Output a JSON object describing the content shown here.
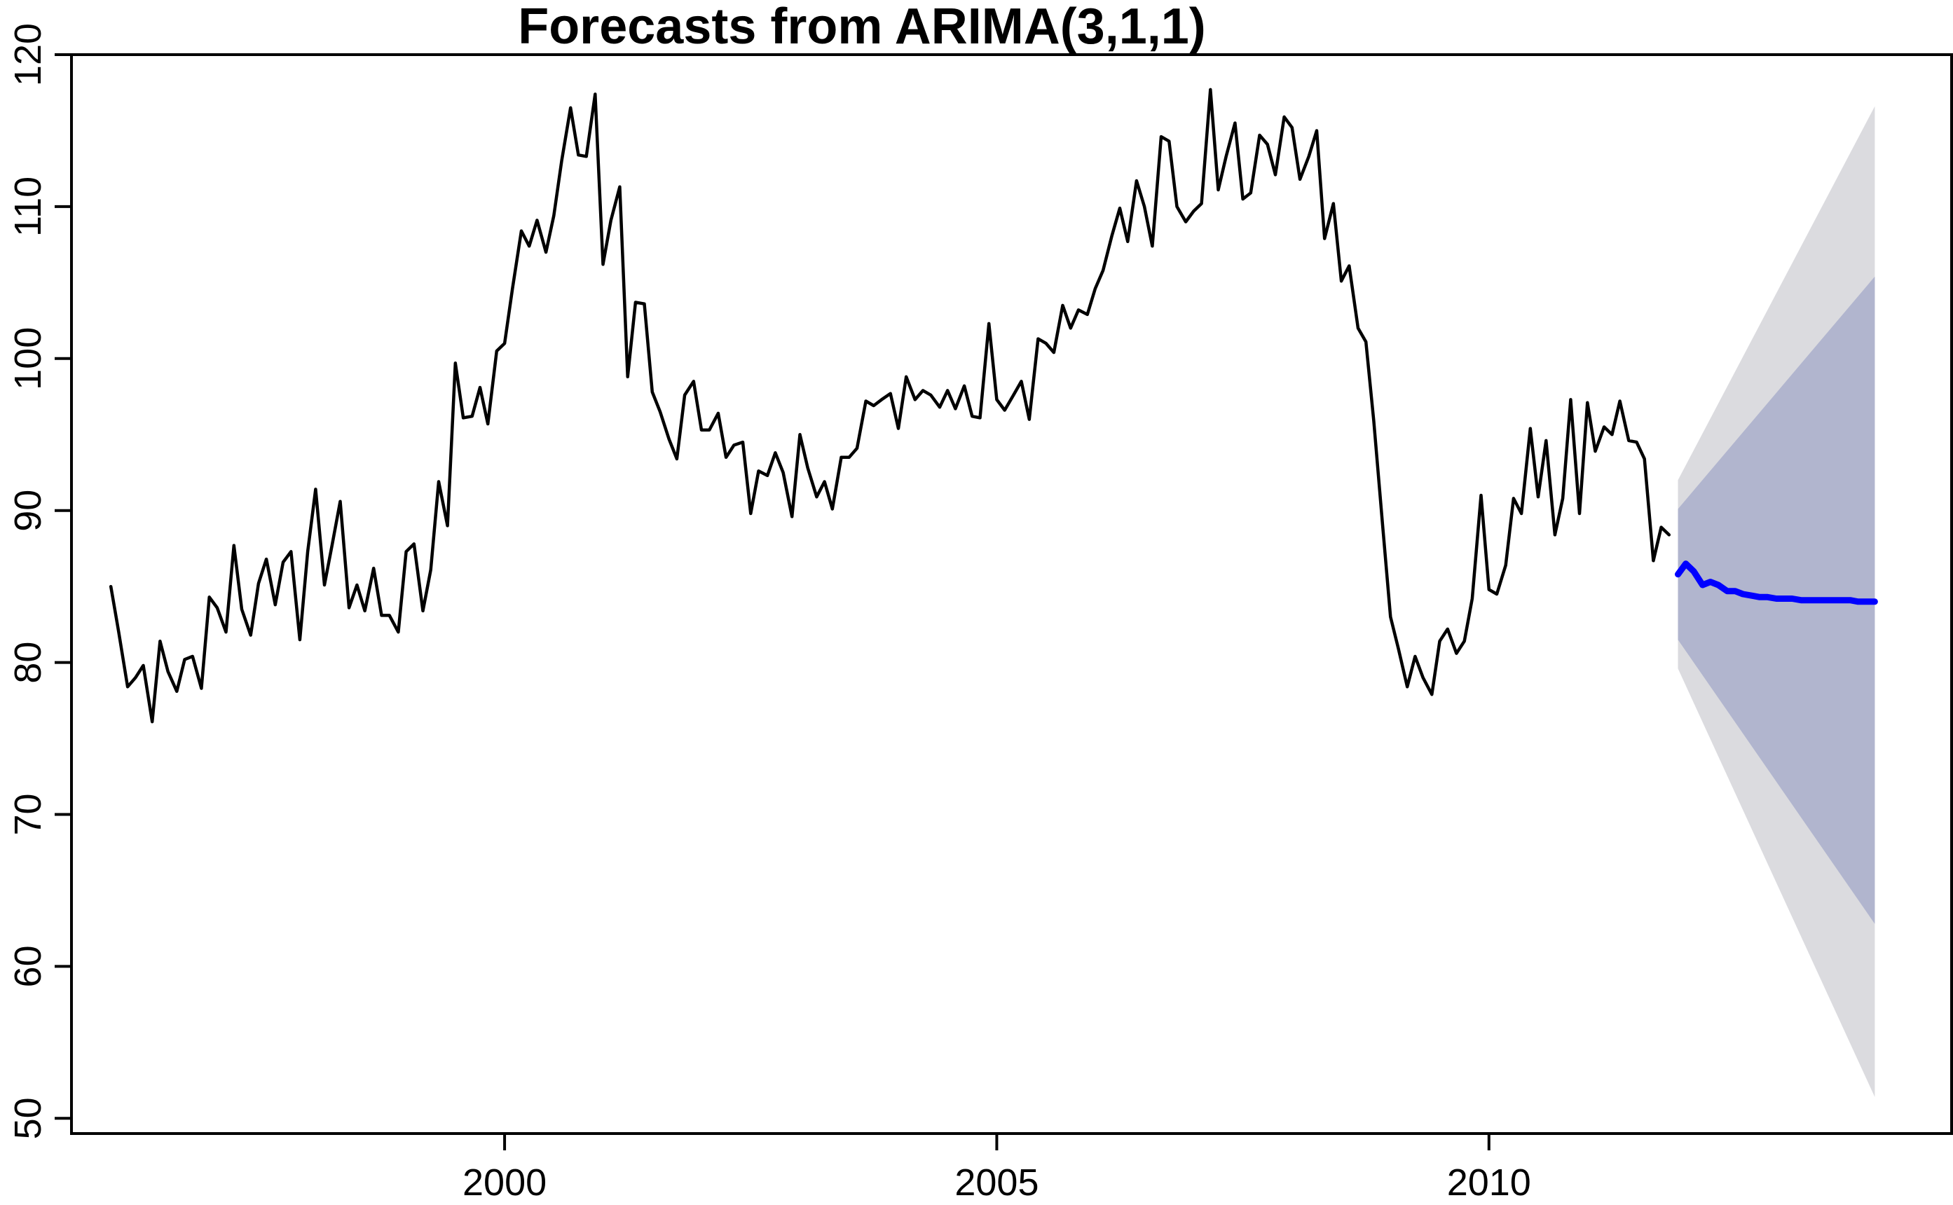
{
  "chart_data": {
    "type": "line",
    "title": "Forecasts from ARIMA(3,1,1)",
    "xlabel": "",
    "ylabel": "",
    "xlim": [
      1995.6,
      2014.7
    ],
    "ylim": [
      49,
      120
    ],
    "x_ticks": [
      2000,
      2005,
      2010
    ],
    "y_ticks": [
      50,
      60,
      70,
      80,
      90,
      100,
      110,
      120
    ],
    "grid": false,
    "legend": "none",
    "colors": {
      "observed": "#000000",
      "forecast": "#0000ff",
      "band80": "#b1b5ce",
      "band95": "#dbdbdf"
    },
    "series": [
      {
        "role": "observed",
        "x": [
          1996.0,
          1996.08,
          1996.17,
          1996.25,
          1996.33,
          1996.42,
          1996.5,
          1996.58,
          1996.67,
          1996.75,
          1996.83,
          1996.92,
          1997.0,
          1997.08,
          1997.17,
          1997.25,
          1997.33,
          1997.42,
          1997.5,
          1997.58,
          1997.67,
          1997.75,
          1997.83,
          1997.92,
          1998.0,
          1998.08,
          1998.17,
          1998.25,
          1998.33,
          1998.42,
          1998.5,
          1998.58,
          1998.67,
          1998.75,
          1998.83,
          1998.92,
          1999.0,
          1999.08,
          1999.17,
          1999.25,
          1999.33,
          1999.42,
          1999.5,
          1999.58,
          1999.67,
          1999.75,
          1999.83,
          1999.92,
          2000.0,
          2000.08,
          2000.17,
          2000.25,
          2000.33,
          2000.42,
          2000.5,
          2000.58,
          2000.67,
          2000.75,
          2000.83,
          2000.92,
          2001.0,
          2001.08,
          2001.17,
          2001.25,
          2001.33,
          2001.42,
          2001.5,
          2001.58,
          2001.67,
          2001.75,
          2001.83,
          2001.92,
          2002.0,
          2002.08,
          2002.17,
          2002.25,
          2002.33,
          2002.42,
          2002.5,
          2002.58,
          2002.67,
          2002.75,
          2002.83,
          2002.92,
          2003.0,
          2003.08,
          2003.17,
          2003.25,
          2003.33,
          2003.42,
          2003.5,
          2003.58,
          2003.67,
          2003.75,
          2003.83,
          2003.92,
          2004.0,
          2004.08,
          2004.17,
          2004.25,
          2004.33,
          2004.42,
          2004.5,
          2004.58,
          2004.67,
          2004.75,
          2004.83,
          2004.92,
          2005.0,
          2005.08,
          2005.17,
          2005.25,
          2005.33,
          2005.42,
          2005.5,
          2005.58,
          2005.67,
          2005.75,
          2005.83,
          2005.92,
          2006.0,
          2006.08,
          2006.17,
          2006.25,
          2006.33,
          2006.42,
          2006.5,
          2006.58,
          2006.67,
          2006.75,
          2006.83,
          2006.92,
          2007.0,
          2007.08,
          2007.17,
          2007.25,
          2007.33,
          2007.42,
          2007.5,
          2007.58,
          2007.67,
          2007.75,
          2007.83,
          2007.92,
          2008.0,
          2008.08,
          2008.17,
          2008.25,
          2008.33,
          2008.42,
          2008.5,
          2008.58,
          2008.67,
          2008.75,
          2008.83,
          2008.92,
          2009.0,
          2009.08,
          2009.17,
          2009.25,
          2009.33,
          2009.42,
          2009.5,
          2009.58,
          2009.67,
          2009.75,
          2009.83,
          2009.92,
          2010.0,
          2010.08,
          2010.17,
          2010.25,
          2010.33,
          2010.42,
          2010.5,
          2010.58,
          2010.67,
          2010.75,
          2010.83,
          2010.92,
          2011.0,
          2011.08,
          2011.17,
          2011.25,
          2011.33,
          2011.42,
          2011.5,
          2011.58,
          2011.67,
          2011.75,
          2011.83
        ],
        "values": [
          85.0,
          82.0,
          78.4,
          79.0,
          79.8,
          76.1,
          81.4,
          79.4,
          78.1,
          80.2,
          80.4,
          78.3,
          84.3,
          83.6,
          82.0,
          87.7,
          83.5,
          81.8,
          85.2,
          86.8,
          83.8,
          86.6,
          87.3,
          81.5,
          87.3,
          91.4,
          85.1,
          87.8,
          90.6,
          83.6,
          85.1,
          83.4,
          86.2,
          83.1,
          83.1,
          82.0,
          87.3,
          87.8,
          83.4,
          86.1,
          91.9,
          89.0,
          99.7,
          96.1,
          96.2,
          98.1,
          95.7,
          100.5,
          101.0,
          104.6,
          108.4,
          107.4,
          109.1,
          107.0,
          109.4,
          113.0,
          116.5,
          113.4,
          113.3,
          117.4,
          106.2,
          109.1,
          111.3,
          98.8,
          103.7,
          103.6,
          97.8,
          96.5,
          94.7,
          93.4,
          97.6,
          98.5,
          95.3,
          95.3,
          96.4,
          93.5,
          94.3,
          94.5,
          89.8,
          92.6,
          92.3,
          93.8,
          92.5,
          89.6,
          95.0,
          92.8,
          90.9,
          91.9,
          90.1,
          93.5,
          93.5,
          94.1,
          97.2,
          96.9,
          97.3,
          97.7,
          95.4,
          98.8,
          97.3,
          97.9,
          97.6,
          96.8,
          97.9,
          96.7,
          98.2,
          96.2,
          96.1,
          102.3,
          97.3,
          96.6,
          97.6,
          98.5,
          96.0,
          101.3,
          101.0,
          100.4,
          103.5,
          102.0,
          103.2,
          102.9,
          104.6,
          105.8,
          108.1,
          109.9,
          107.7,
          111.7,
          110.0,
          107.4,
          114.6,
          114.3,
          110.0,
          109.0,
          109.7,
          110.2,
          117.7,
          111.1,
          113.3,
          115.5,
          110.5,
          110.9,
          114.7,
          114.1,
          112.1,
          115.9,
          115.2,
          111.8,
          113.3,
          115.0,
          107.9,
          110.2,
          105.1,
          106.1,
          102.0,
          101.1,
          95.9,
          89.0,
          83.0,
          80.9,
          78.4,
          80.4,
          79.0,
          77.9,
          81.4,
          82.2,
          80.6,
          81.4,
          84.2,
          91.0,
          84.8,
          84.5,
          86.4,
          90.8,
          89.8,
          95.4,
          90.9,
          94.6,
          88.4,
          90.8,
          97.3,
          89.8,
          97.1,
          93.9,
          95.5,
          95.0,
          97.2,
          94.6,
          94.5,
          93.4,
          86.7,
          88.9,
          88.4
        ]
      },
      {
        "role": "forecast",
        "x": [
          2011.92,
          2012.0,
          2012.08,
          2012.17,
          2012.25,
          2012.33,
          2012.42,
          2012.5,
          2012.58,
          2012.67,
          2012.75,
          2012.83,
          2012.92,
          2013.0,
          2013.08,
          2013.17,
          2013.25,
          2013.33,
          2013.42,
          2013.5,
          2013.58,
          2013.67,
          2013.75,
          2013.83,
          2013.92
        ],
        "values": [
          85.8,
          86.5,
          86.0,
          85.1,
          85.3,
          85.1,
          84.7,
          84.7,
          84.5,
          84.4,
          84.3,
          84.3,
          84.2,
          84.2,
          84.2,
          84.1,
          84.1,
          84.1,
          84.1,
          84.1,
          84.1,
          84.1,
          84.0,
          84.0,
          84.0
        ]
      },
      {
        "role": "band80",
        "x": [
          2011.92,
          2013.92
        ],
        "lower": [
          81.5,
          62.8
        ],
        "upper": [
          90.1,
          105.4
        ]
      },
      {
        "role": "band95",
        "x": [
          2011.92,
          2013.92
        ],
        "lower": [
          79.6,
          51.4
        ],
        "upper": [
          92.0,
          116.6
        ]
      }
    ]
  }
}
